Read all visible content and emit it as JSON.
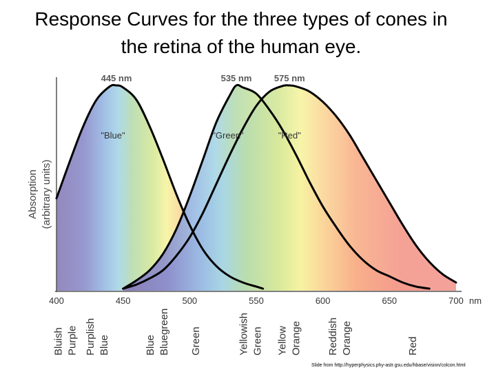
{
  "title_lines": [
    "Response Curves for the three types of cones in",
    "the retina of the human eye."
  ],
  "credit": "Slide from http://hyperphysics.phy-astr.gsu.edu/hbase/vision/colcon.html",
  "chart_data": {
    "type": "line",
    "title": "",
    "ylabel_lines": [
      "Absorption",
      "(arbitrary units)"
    ],
    "xlim": [
      400,
      700
    ],
    "ylim": [
      0,
      1
    ],
    "x_ticks": [
      400,
      450,
      500,
      550,
      600,
      650,
      700
    ],
    "x_unit": "nm",
    "grid": false,
    "series": [
      {
        "name": "\"Blue\"",
        "peak_label": "445 nm",
        "peak_nm": 445,
        "color": "#000000",
        "x": [
          400,
          410,
          420,
          430,
          440,
          445,
          450,
          460,
          470,
          480,
          490,
          500,
          510,
          520,
          530,
          540,
          550,
          555
        ],
        "y": [
          0.45,
          0.63,
          0.8,
          0.93,
          0.995,
          1.0,
          0.99,
          0.93,
          0.8,
          0.64,
          0.47,
          0.32,
          0.2,
          0.12,
          0.07,
          0.04,
          0.02,
          0.01
        ]
      },
      {
        "name": "\"Green\"",
        "peak_label": "535 nm",
        "peak_nm": 535,
        "color": "#000000",
        "x": [
          450,
          460,
          470,
          480,
          490,
          500,
          510,
          520,
          530,
          535,
          540,
          550,
          560,
          570,
          580,
          590,
          600,
          610,
          620,
          630,
          640,
          650,
          660,
          670,
          680
        ],
        "y": [
          0.01,
          0.05,
          0.1,
          0.18,
          0.3,
          0.46,
          0.64,
          0.82,
          0.95,
          1.0,
          0.99,
          0.96,
          0.88,
          0.78,
          0.66,
          0.53,
          0.41,
          0.31,
          0.22,
          0.15,
          0.1,
          0.07,
          0.04,
          0.02,
          0.01
        ]
      },
      {
        "name": "\"Red\"",
        "peak_label": "575 nm",
        "peak_nm": 575,
        "color": "#000000",
        "x": [
          450,
          460,
          470,
          480,
          490,
          500,
          510,
          520,
          530,
          540,
          550,
          560,
          570,
          575,
          580,
          590,
          600,
          610,
          620,
          630,
          640,
          650,
          660,
          670,
          680,
          690,
          700
        ],
        "y": [
          0.01,
          0.03,
          0.06,
          0.1,
          0.17,
          0.26,
          0.38,
          0.52,
          0.66,
          0.79,
          0.9,
          0.97,
          0.998,
          1.0,
          0.995,
          0.97,
          0.92,
          0.85,
          0.76,
          0.65,
          0.54,
          0.43,
          0.32,
          0.22,
          0.14,
          0.08,
          0.04
        ]
      }
    ],
    "color_bands": [
      {
        "nm": 404,
        "label_lines": [
          "Bluish",
          "Purple"
        ]
      },
      {
        "nm": 428,
        "label_lines": [
          "Purplish",
          "Blue"
        ]
      },
      {
        "nm": 473,
        "label_lines": [
          "Blue",
          "Bluegreen"
        ]
      },
      {
        "nm": 507,
        "label_lines": [
          "Green"
        ]
      },
      {
        "nm": 543,
        "label_lines": [
          "Yellowish",
          "Green"
        ]
      },
      {
        "nm": 572,
        "label_lines": [
          "Yellow",
          "Orange"
        ]
      },
      {
        "nm": 610,
        "label_lines": [
          "Reddish",
          "Orange"
        ]
      },
      {
        "nm": 670,
        "label_lines": [
          "Red"
        ]
      }
    ],
    "spectrum_colors": [
      {
        "nm": 400,
        "color": "#8a7fb8"
      },
      {
        "nm": 440,
        "color": "#8d8fcc"
      },
      {
        "nm": 470,
        "color": "#9bbbe4"
      },
      {
        "nm": 490,
        "color": "#a8d6e6"
      },
      {
        "nm": 510,
        "color": "#b8dcb0"
      },
      {
        "nm": 540,
        "color": "#d6e89a"
      },
      {
        "nm": 560,
        "color": "#f6f4a2"
      },
      {
        "nm": 580,
        "color": "#fbd79a"
      },
      {
        "nm": 610,
        "color": "#f8b08a"
      },
      {
        "nm": 650,
        "color": "#f49a8c"
      },
      {
        "nm": 700,
        "color": "#f29a92"
      }
    ]
  }
}
